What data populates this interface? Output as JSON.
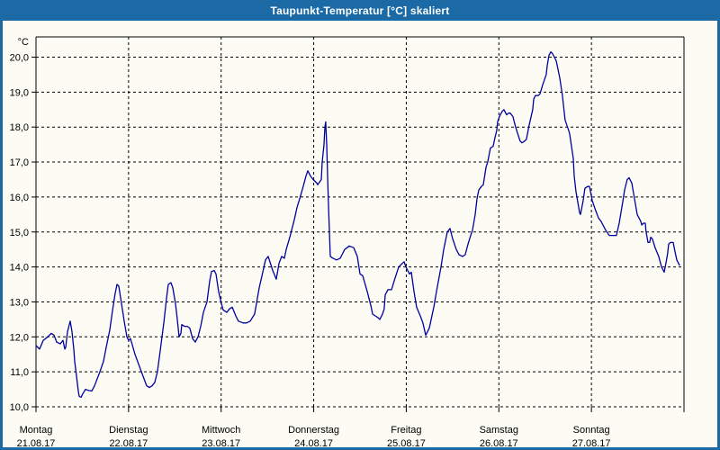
{
  "window": {
    "title": "Taupunkt-Temperatur [°C] skaliert"
  },
  "colors": {
    "titlebar": "#1B6AA5",
    "window_border": "#1B6AA5",
    "background": "#FCFCF4",
    "plot_border": "#000000",
    "gridline": "#000000",
    "tick": "#000000",
    "label_text": "#000000",
    "line": "#0000A0"
  },
  "chart_data": {
    "type": "line",
    "title": "Taupunkt-Temperatur [°C] skaliert",
    "y_unit_label": "°C",
    "y_ticks": [
      20,
      19,
      18,
      17,
      16,
      15,
      14,
      13,
      12,
      11,
      10
    ],
    "y_tick_labels": [
      "20,0",
      "19,0",
      "18,0",
      "17,0",
      "16,0",
      "15,0",
      "14,0",
      "13,0",
      "12,0",
      "11,0",
      "10,0"
    ],
    "ylim": [
      10.0,
      20.6
    ],
    "xlim_days": [
      0,
      7
    ],
    "grid": "dashed",
    "legend": "none",
    "x_categories": [
      {
        "name": "Montag",
        "date": "21.08.17"
      },
      {
        "name": "Dienstag",
        "date": "22.08.17"
      },
      {
        "name": "Mittwoch",
        "date": "23.08.17"
      },
      {
        "name": "Donnerstag",
        "date": "24.08.17"
      },
      {
        "name": "Freitag",
        "date": "25.08.17"
      },
      {
        "name": "Samstag",
        "date": "26.08.17"
      },
      {
        "name": "Sonntag",
        "date": "27.08.17"
      }
    ],
    "series": [
      {
        "name": "Taupunkt-Temperatur",
        "color": "#0000A0",
        "points": [
          [
            0.0,
            11.75
          ],
          [
            0.039,
            11.65
          ],
          [
            0.078,
            11.9
          ],
          [
            0.126,
            12.0
          ],
          [
            0.165,
            12.1
          ],
          [
            0.194,
            12.05
          ],
          [
            0.224,
            11.85
          ],
          [
            0.262,
            11.8
          ],
          [
            0.292,
            11.9
          ],
          [
            0.311,
            11.65
          ],
          [
            0.321,
            11.7
          ],
          [
            0.34,
            12.15
          ],
          [
            0.369,
            12.45
          ],
          [
            0.389,
            12.15
          ],
          [
            0.408,
            11.65
          ],
          [
            0.418,
            11.3
          ],
          [
            0.437,
            10.9
          ],
          [
            0.457,
            10.45
          ],
          [
            0.467,
            10.3
          ],
          [
            0.486,
            10.27
          ],
          [
            0.506,
            10.37
          ],
          [
            0.535,
            10.5
          ],
          [
            0.564,
            10.47
          ],
          [
            0.603,
            10.45
          ],
          [
            0.632,
            10.6
          ],
          [
            0.661,
            10.8
          ],
          [
            0.69,
            11.0
          ],
          [
            0.729,
            11.3
          ],
          [
            0.758,
            11.7
          ],
          [
            0.797,
            12.2
          ],
          [
            0.826,
            12.75
          ],
          [
            0.856,
            13.25
          ],
          [
            0.875,
            13.5
          ],
          [
            0.894,
            13.45
          ],
          [
            0.924,
            12.95
          ],
          [
            0.953,
            12.45
          ],
          [
            0.982,
            12.0
          ],
          [
            1.001,
            11.9
          ],
          [
            1.021,
            11.95
          ],
          [
            1.069,
            11.5
          ],
          [
            1.118,
            11.15
          ],
          [
            1.167,
            10.8
          ],
          [
            1.196,
            10.6
          ],
          [
            1.225,
            10.55
          ],
          [
            1.254,
            10.6
          ],
          [
            1.283,
            10.7
          ],
          [
            1.312,
            11.0
          ],
          [
            1.342,
            11.6
          ],
          [
            1.381,
            12.4
          ],
          [
            1.41,
            13.1
          ],
          [
            1.429,
            13.5
          ],
          [
            1.458,
            13.55
          ],
          [
            1.478,
            13.4
          ],
          [
            1.507,
            12.95
          ],
          [
            1.526,
            12.5
          ],
          [
            1.546,
            12.0
          ],
          [
            1.565,
            12.1
          ],
          [
            1.575,
            12.35
          ],
          [
            1.604,
            12.3
          ],
          [
            1.633,
            12.3
          ],
          [
            1.662,
            12.25
          ],
          [
            1.692,
            11.95
          ],
          [
            1.721,
            11.85
          ],
          [
            1.75,
            12.0
          ],
          [
            1.779,
            12.3
          ],
          [
            1.808,
            12.7
          ],
          [
            1.847,
            13.0
          ],
          [
            1.876,
            13.6
          ],
          [
            1.896,
            13.87
          ],
          [
            1.925,
            13.9
          ],
          [
            1.944,
            13.8
          ],
          [
            1.973,
            13.3
          ],
          [
            2.003,
            12.95
          ],
          [
            2.022,
            12.77
          ],
          [
            2.061,
            12.7
          ],
          [
            2.09,
            12.8
          ],
          [
            2.119,
            12.85
          ],
          [
            2.158,
            12.6
          ],
          [
            2.187,
            12.45
          ],
          [
            2.236,
            12.4
          ],
          [
            2.275,
            12.4
          ],
          [
            2.314,
            12.45
          ],
          [
            2.362,
            12.65
          ],
          [
            2.411,
            13.4
          ],
          [
            2.45,
            13.85
          ],
          [
            2.479,
            14.2
          ],
          [
            2.508,
            14.3
          ],
          [
            2.557,
            13.9
          ],
          [
            2.596,
            13.65
          ],
          [
            2.625,
            14.1
          ],
          [
            2.654,
            14.3
          ],
          [
            2.683,
            14.25
          ],
          [
            2.703,
            14.5
          ],
          [
            2.742,
            14.85
          ],
          [
            2.79,
            15.35
          ],
          [
            2.819,
            15.7
          ],
          [
            2.849,
            15.95
          ],
          [
            2.887,
            16.3
          ],
          [
            2.917,
            16.6
          ],
          [
            2.936,
            16.75
          ],
          [
            2.965,
            16.6
          ],
          [
            2.994,
            16.5
          ],
          [
            3.033,
            16.4
          ],
          [
            3.043,
            16.35
          ],
          [
            3.082,
            16.5
          ],
          [
            3.092,
            17.0
          ],
          [
            3.111,
            17.5
          ],
          [
            3.121,
            18.0
          ],
          [
            3.13,
            18.15
          ],
          [
            3.14,
            17.5
          ],
          [
            3.15,
            16.6
          ],
          [
            3.16,
            15.75
          ],
          [
            3.179,
            14.3
          ],
          [
            3.208,
            14.25
          ],
          [
            3.247,
            14.2
          ],
          [
            3.286,
            14.25
          ],
          [
            3.335,
            14.5
          ],
          [
            3.383,
            14.6
          ],
          [
            3.432,
            14.55
          ],
          [
            3.471,
            14.3
          ],
          [
            3.5,
            13.8
          ],
          [
            3.529,
            13.75
          ],
          [
            3.578,
            13.3
          ],
          [
            3.617,
            12.9
          ],
          [
            3.636,
            12.65
          ],
          [
            3.665,
            12.6
          ],
          [
            3.694,
            12.55
          ],
          [
            3.714,
            12.5
          ],
          [
            3.743,
            12.65
          ],
          [
            3.762,
            12.8
          ],
          [
            3.772,
            13.2
          ],
          [
            3.801,
            13.35
          ],
          [
            3.84,
            13.35
          ],
          [
            3.869,
            13.6
          ],
          [
            3.918,
            14.0
          ],
          [
            3.957,
            14.1
          ],
          [
            3.976,
            14.15
          ],
          [
            3.996,
            14.0
          ],
          [
            4.015,
            13.9
          ],
          [
            4.035,
            13.8
          ],
          [
            4.054,
            13.85
          ],
          [
            4.083,
            13.3
          ],
          [
            4.112,
            12.85
          ],
          [
            4.151,
            12.6
          ],
          [
            4.18,
            12.4
          ],
          [
            4.21,
            12.05
          ],
          [
            4.249,
            12.25
          ],
          [
            4.297,
            12.85
          ],
          [
            4.326,
            13.3
          ],
          [
            4.375,
            14.0
          ],
          [
            4.404,
            14.5
          ],
          [
            4.443,
            15.0
          ],
          [
            4.472,
            15.1
          ],
          [
            4.501,
            14.8
          ],
          [
            4.54,
            14.5
          ],
          [
            4.569,
            14.35
          ],
          [
            4.608,
            14.3
          ],
          [
            4.637,
            14.35
          ],
          [
            4.667,
            14.65
          ],
          [
            4.696,
            14.9
          ],
          [
            4.715,
            15.05
          ],
          [
            4.744,
            15.5
          ],
          [
            4.764,
            15.95
          ],
          [
            4.783,
            16.2
          ],
          [
            4.812,
            16.3
          ],
          [
            4.832,
            16.35
          ],
          [
            4.841,
            16.5
          ],
          [
            4.861,
            16.85
          ],
          [
            4.88,
            17.0
          ],
          [
            4.909,
            17.4
          ],
          [
            4.938,
            17.45
          ],
          [
            4.958,
            17.7
          ],
          [
            4.977,
            17.9
          ],
          [
            4.987,
            18.15
          ],
          [
            5.006,
            18.3
          ],
          [
            5.036,
            18.45
          ],
          [
            5.055,
            18.5
          ],
          [
            5.084,
            18.35
          ],
          [
            5.104,
            18.4
          ],
          [
            5.123,
            18.4
          ],
          [
            5.152,
            18.3
          ],
          [
            5.181,
            18.0
          ],
          [
            5.211,
            17.75
          ],
          [
            5.23,
            17.6
          ],
          [
            5.249,
            17.55
          ],
          [
            5.279,
            17.6
          ],
          [
            5.298,
            17.65
          ],
          [
            5.327,
            18.05
          ],
          [
            5.366,
            18.5
          ],
          [
            5.376,
            18.8
          ],
          [
            5.395,
            18.9
          ],
          [
            5.425,
            18.9
          ],
          [
            5.444,
            18.95
          ],
          [
            5.473,
            19.2
          ],
          [
            5.512,
            19.5
          ],
          [
            5.522,
            19.75
          ],
          [
            5.541,
            20.05
          ],
          [
            5.561,
            20.15
          ],
          [
            5.58,
            20.1
          ],
          [
            5.6,
            20.0
          ],
          [
            5.619,
            19.9
          ],
          [
            5.658,
            19.4
          ],
          [
            5.687,
            18.9
          ],
          [
            5.716,
            18.2
          ],
          [
            5.755,
            17.9
          ],
          [
            5.765,
            17.8
          ],
          [
            5.804,
            17.1
          ],
          [
            5.814,
            16.6
          ],
          [
            5.833,
            16.15
          ],
          [
            5.853,
            15.85
          ],
          [
            5.872,
            15.55
          ],
          [
            5.882,
            15.5
          ],
          [
            5.911,
            15.9
          ],
          [
            5.93,
            16.25
          ],
          [
            5.959,
            16.3
          ],
          [
            5.979,
            16.3
          ],
          [
            6.008,
            15.9
          ],
          [
            6.047,
            15.6
          ],
          [
            6.076,
            15.4
          ],
          [
            6.105,
            15.3
          ],
          [
            6.154,
            15.05
          ],
          [
            6.193,
            14.9
          ],
          [
            6.232,
            14.9
          ],
          [
            6.27,
            14.9
          ],
          [
            6.3,
            15.25
          ],
          [
            6.338,
            15.85
          ],
          [
            6.358,
            16.2
          ],
          [
            6.387,
            16.5
          ],
          [
            6.407,
            16.55
          ],
          [
            6.436,
            16.4
          ],
          [
            6.465,
            15.95
          ],
          [
            6.494,
            15.5
          ],
          [
            6.533,
            15.3
          ],
          [
            6.543,
            15.2
          ],
          [
            6.562,
            15.25
          ],
          [
            6.582,
            15.25
          ],
          [
            6.591,
            15.0
          ],
          [
            6.611,
            14.7
          ],
          [
            6.63,
            14.7
          ],
          [
            6.64,
            14.85
          ],
          [
            6.659,
            14.8
          ],
          [
            6.688,
            14.55
          ],
          [
            6.727,
            14.3
          ],
          [
            6.757,
            14.0
          ],
          [
            6.776,
            13.9
          ],
          [
            6.786,
            13.85
          ],
          [
            6.805,
            14.1
          ],
          [
            6.824,
            14.4
          ],
          [
            6.834,
            14.65
          ],
          [
            6.854,
            14.7
          ],
          [
            6.883,
            14.7
          ],
          [
            6.902,
            14.45
          ],
          [
            6.922,
            14.2
          ],
          [
            6.951,
            14.05
          ]
        ]
      }
    ]
  }
}
